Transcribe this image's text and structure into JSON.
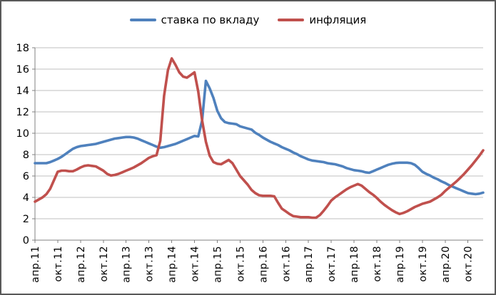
{
  "chart_data": {
    "type": "line",
    "title": "",
    "legend_position": "top",
    "x_tick_labels": [
      "апр.11",
      "окт.11",
      "апр.12",
      "окт.12",
      "апр.13",
      "окт.13",
      "апр.14",
      "окт.14",
      "апр.15",
      "окт.15",
      "апр.16",
      "окт.16",
      "апр.17",
      "окт.17",
      "апр.18",
      "окт.18",
      "апр.19",
      "окт.19",
      "апр.20",
      "окт.20"
    ],
    "x_tick_interval": 6,
    "x_total_points": 119,
    "y_ticks": [
      0,
      2,
      4,
      6,
      8,
      10,
      12,
      14,
      16,
      18
    ],
    "ylim": [
      0,
      18
    ],
    "grid": "horizontal",
    "series": [
      {
        "name": "ставка по вкладу",
        "color": "#4F81BD",
        "values": [
          7.2,
          7.2,
          7.2,
          7.2,
          7.3,
          7.45,
          7.6,
          7.8,
          8.05,
          8.3,
          8.55,
          8.7,
          8.8,
          8.85,
          8.9,
          8.95,
          9.0,
          9.1,
          9.2,
          9.3,
          9.4,
          9.5,
          9.55,
          9.6,
          9.65,
          9.65,
          9.6,
          9.5,
          9.35,
          9.2,
          9.05,
          8.9,
          8.75,
          8.65,
          8.7,
          8.8,
          8.9,
          9.0,
          9.15,
          9.3,
          9.45,
          9.6,
          9.75,
          9.7,
          11.2,
          14.9,
          14.2,
          13.3,
          12.1,
          11.4,
          11.05,
          10.95,
          10.9,
          10.85,
          10.65,
          10.55,
          10.45,
          10.35,
          10.05,
          9.85,
          9.6,
          9.4,
          9.2,
          9.05,
          8.9,
          8.7,
          8.55,
          8.4,
          8.2,
          8.05,
          7.85,
          7.7,
          7.55,
          7.45,
          7.4,
          7.35,
          7.3,
          7.2,
          7.15,
          7.1,
          7.0,
          6.9,
          6.75,
          6.65,
          6.55,
          6.5,
          6.45,
          6.35,
          6.3,
          6.45,
          6.6,
          6.75,
          6.9,
          7.05,
          7.15,
          7.22,
          7.25,
          7.25,
          7.25,
          7.2,
          7.05,
          6.75,
          6.4,
          6.2,
          6.05,
          5.85,
          5.7,
          5.5,
          5.35,
          5.15,
          5.0,
          4.85,
          4.7,
          4.55,
          4.4,
          4.35,
          4.3,
          4.35,
          4.45
        ]
      },
      {
        "name": "инфляция",
        "color": "#C0504D",
        "values": [
          3.6,
          3.8,
          4.0,
          4.3,
          4.8,
          5.6,
          6.4,
          6.5,
          6.5,
          6.45,
          6.45,
          6.6,
          6.8,
          6.95,
          7.0,
          6.95,
          6.9,
          6.7,
          6.5,
          6.2,
          6.05,
          6.1,
          6.2,
          6.35,
          6.5,
          6.65,
          6.8,
          7.0,
          7.2,
          7.45,
          7.7,
          7.85,
          7.95,
          9.3,
          13.5,
          15.9,
          17.0,
          16.4,
          15.7,
          15.3,
          15.2,
          15.45,
          15.7,
          13.9,
          11.2,
          9.2,
          7.9,
          7.3,
          7.15,
          7.1,
          7.3,
          7.5,
          7.2,
          6.6,
          6.0,
          5.6,
          5.2,
          4.7,
          4.4,
          4.2,
          4.15,
          4.15,
          4.15,
          4.1,
          3.5,
          2.95,
          2.7,
          2.45,
          2.25,
          2.2,
          2.15,
          2.15,
          2.15,
          2.1,
          2.1,
          2.35,
          2.75,
          3.2,
          3.7,
          4.0,
          4.25,
          4.5,
          4.75,
          4.95,
          5.1,
          5.25,
          5.1,
          4.8,
          4.5,
          4.25,
          3.95,
          3.6,
          3.3,
          3.05,
          2.8,
          2.6,
          2.45,
          2.55,
          2.7,
          2.9,
          3.1,
          3.25,
          3.4,
          3.5,
          3.6,
          3.8,
          4.0,
          4.25,
          4.6,
          4.9,
          5.2,
          5.5,
          5.85,
          6.2,
          6.6,
          7.0,
          7.45,
          7.9,
          8.4
        ]
      }
    ],
    "colors": {
      "background": "#FFFFFF",
      "gridline": "#BFBFBF",
      "axis": "#808080",
      "text": "#000000",
      "frame_border": "#595959"
    }
  }
}
